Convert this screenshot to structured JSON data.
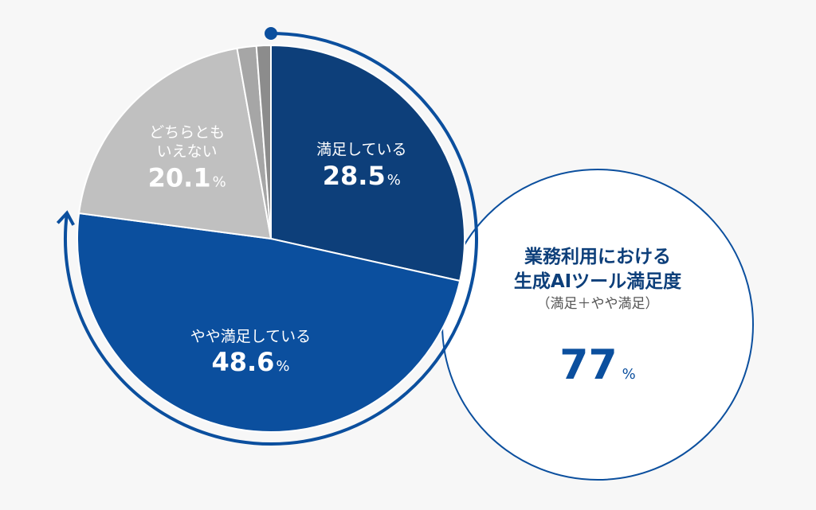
{
  "chart_data": {
    "type": "pie",
    "categories": [
      "満足している",
      "やや満足している",
      "どちらとも\nいえない",
      null,
      null
    ],
    "values": [
      28.5,
      48.6,
      20.1,
      1.6,
      1.2
    ],
    "colors": [
      "#0d3f7a",
      "#0b4f9e",
      "#c0c0c0",
      "#a6a6a6",
      "#8c8c8c"
    ],
    "unit": "%",
    "summary": {
      "title": "業務利用における\n生成AIツール満足度",
      "subtitle": "（満足＋やや満足）",
      "value": 77,
      "unit": "%"
    }
  }
}
